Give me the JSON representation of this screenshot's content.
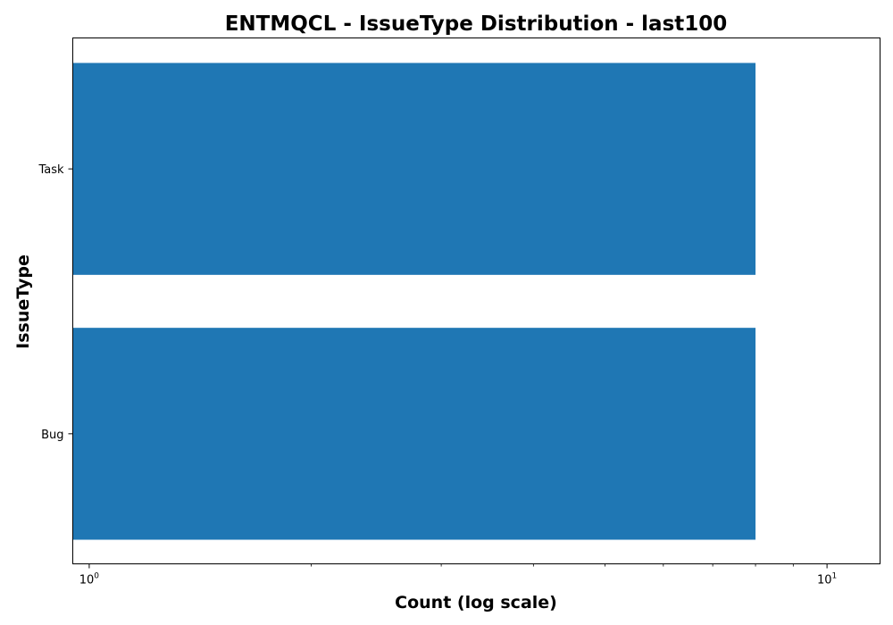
{
  "chart_data": {
    "type": "bar",
    "orientation": "horizontal",
    "title": "ENTMQCL - IssueType Distribution - last100",
    "xlabel": "Count (log scale)",
    "ylabel": "IssueType",
    "x_scale": "log",
    "xlim": [
      0.95,
      11.8
    ],
    "x_major_ticks": [
      {
        "value": 1,
        "base": "10",
        "exp": "0"
      },
      {
        "value": 10,
        "base": "10",
        "exp": "1"
      }
    ],
    "categories": [
      "Bug",
      "Task"
    ],
    "values": [
      8,
      8
    ],
    "bar_color": "#1f77b4",
    "grid": false,
    "legend": "none"
  }
}
